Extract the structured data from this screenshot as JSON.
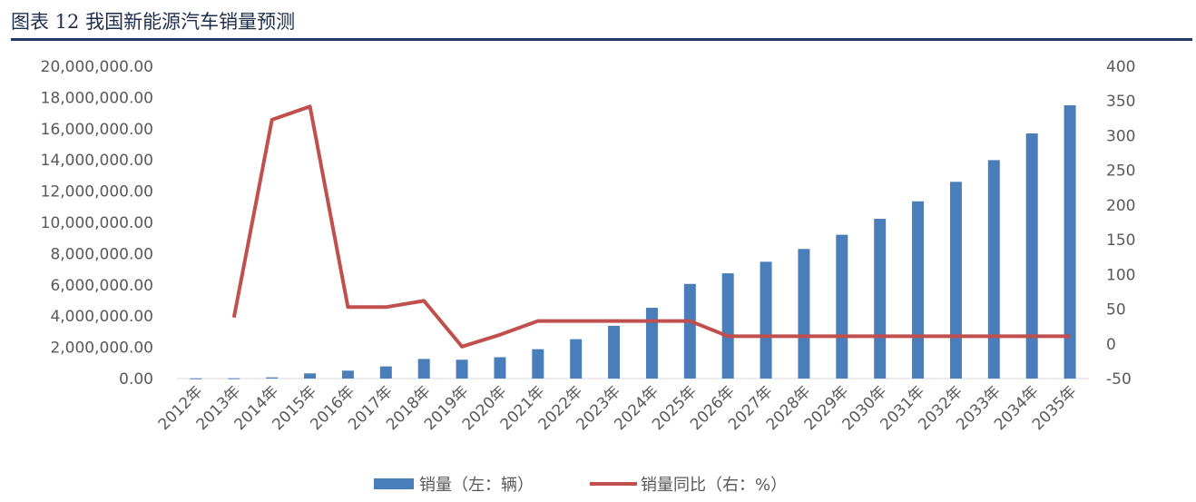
{
  "title": "图表 12 我国新能源汽车销量预测",
  "legend": {
    "bar_label": "销量（左：辆）",
    "line_label": "销量同比（右：%）"
  },
  "colors": {
    "bar": "#4a7ebb",
    "line": "#c0504d",
    "rule": "#1f3864",
    "tick": "#595959"
  },
  "chart_data": {
    "type": "bar",
    "title": "",
    "categories": [
      "2012年",
      "2013年",
      "2014年",
      "2015年",
      "2016年",
      "2017年",
      "2018年",
      "2019年",
      "2020年",
      "2021年",
      "2022年",
      "2023年",
      "2024年",
      "2025年",
      "2026年",
      "2027年",
      "2028年",
      "2029年",
      "2030年",
      "2031年",
      "2032年",
      "2033年",
      "2034年",
      "2035年"
    ],
    "series": [
      {
        "name": "销量（左：辆）",
        "type": "bar",
        "axis": "left",
        "values": [
          13000,
          18000,
          75000,
          331000,
          507000,
          777000,
          1256000,
          1206000,
          1367000,
          1880000,
          2520000,
          3380000,
          4530000,
          6060000,
          6740000,
          7480000,
          8300000,
          9210000,
          10230000,
          11350000,
          12600000,
          13990000,
          15700000,
          17500000
        ]
      },
      {
        "name": "销量同比（右：%）",
        "type": "line",
        "axis": "right",
        "values": [
          null,
          38,
          323,
          342,
          53,
          53,
          62,
          -4,
          13,
          33,
          33,
          33,
          33,
          33,
          11,
          11,
          11,
          11,
          11,
          11,
          11,
          11,
          11,
          11
        ]
      }
    ],
    "y_left": {
      "ylim": [
        0,
        20000000
      ],
      "ticks": [
        "0.00",
        "2,000,000.00",
        "4,000,000.00",
        "6,000,000.00",
        "8,000,000.00",
        "10,000,000.00",
        "12,000,000.00",
        "14,000,000.00",
        "16,000,000.00",
        "18,000,000.00",
        "20,000,000.00"
      ]
    },
    "y_right": {
      "ylim": [
        -50,
        400
      ],
      "ticks": [
        "-50",
        "0",
        "50",
        "100",
        "150",
        "200",
        "250",
        "300",
        "350",
        "400"
      ]
    },
    "xlabel": "",
    "ylabel": "",
    "grid": false,
    "legend_position": "bottom"
  }
}
